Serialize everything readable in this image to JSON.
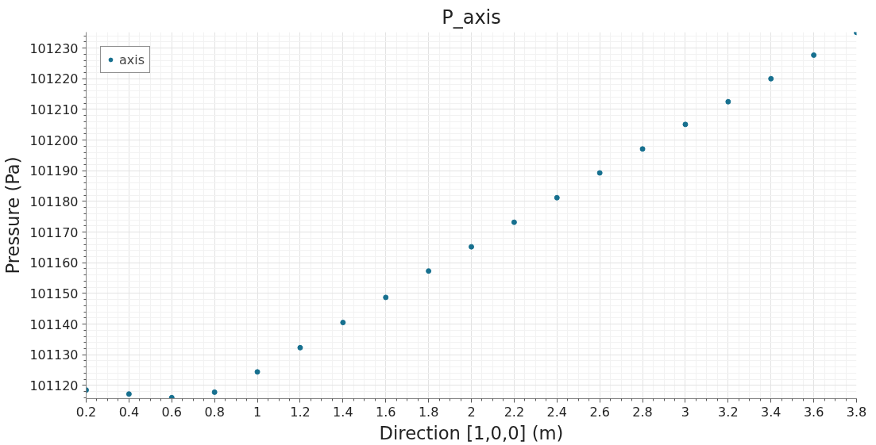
{
  "chart_data": {
    "type": "scatter",
    "title": "P_axis",
    "xlabel": "Direction [1,0,0] (m)",
    "ylabel": "Pressure (Pa)",
    "x": [
      0.2,
      0.4,
      0.6,
      0.8,
      1.0,
      1.2,
      1.4,
      1.6,
      1.8,
      2.0,
      2.2,
      2.4,
      2.6,
      2.8,
      3.0,
      3.2,
      3.4,
      3.6,
      3.8
    ],
    "series": [
      {
        "name": "axis",
        "color": "#17708f",
        "values": [
          101118.5,
          101117.2,
          101116,
          101117.8,
          101124.4,
          101132.3,
          101140.5,
          101148.7,
          101157.3,
          101165.2,
          101173.2,
          101181.2,
          101189.3,
          101197.1,
          101205.1,
          101212.5,
          101220,
          101227.7,
          101235.1
        ]
      }
    ],
    "xlim": [
      0.2,
      3.8
    ],
    "ylim": [
      101115.7,
      101235.2
    ],
    "xticks": [
      0.2,
      0.4,
      0.6,
      0.8,
      1,
      1.2,
      1.4,
      1.6,
      1.8,
      2,
      2.2,
      2.4,
      2.6,
      2.8,
      3,
      3.2,
      3.4,
      3.6,
      3.8
    ],
    "yticks": [
      101120,
      101130,
      101140,
      101150,
      101160,
      101170,
      101180,
      101190,
      101200,
      101210,
      101220,
      101230
    ],
    "grid": true,
    "legend": "top left",
    "marker": "circle"
  }
}
